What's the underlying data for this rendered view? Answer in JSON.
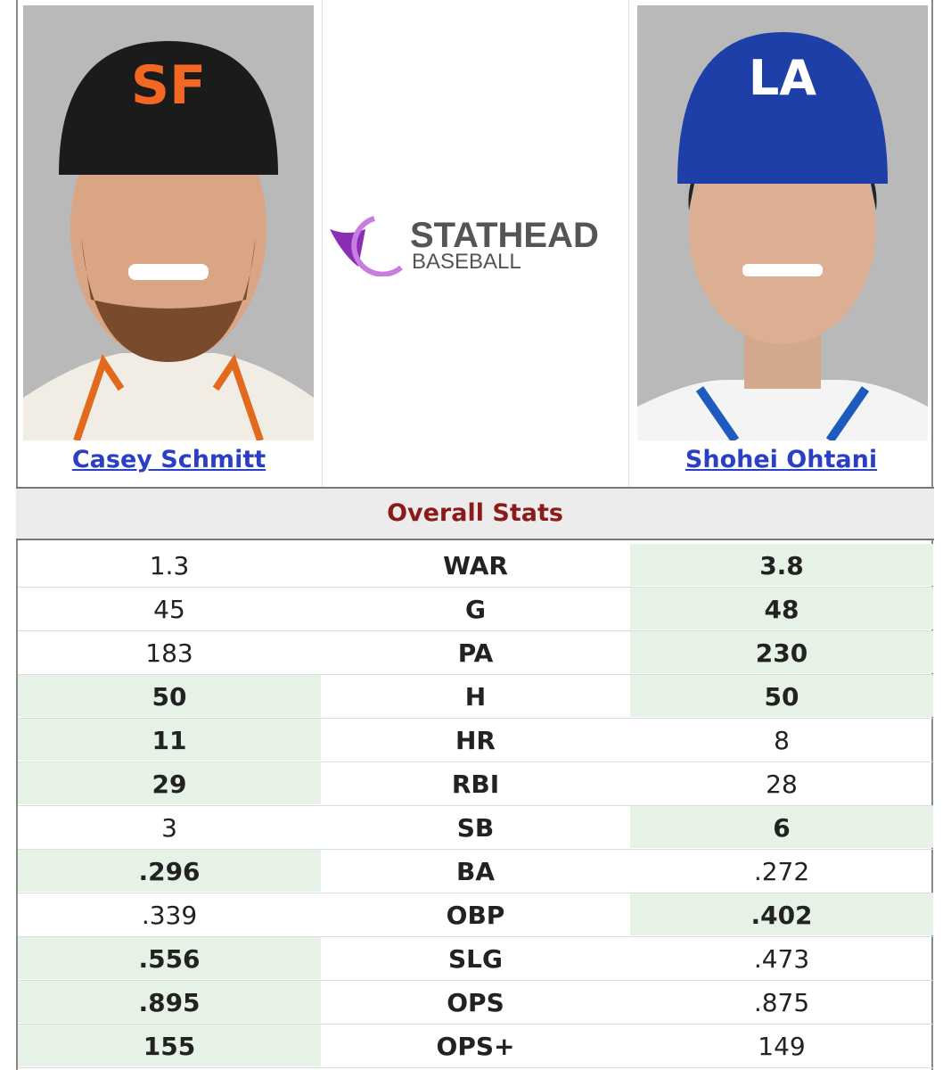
{
  "players": [
    {
      "name": "Casey Schmitt"
    },
    {
      "name": "Shohei Ohtani"
    }
  ],
  "logo": {
    "line1": "STATHEAD",
    "line2": "BASEBALL"
  },
  "section_title": "Overall Stats",
  "rows": [
    {
      "left": "1.3",
      "stat": "WAR",
      "right": "3.8",
      "leader": "right"
    },
    {
      "left": "45",
      "stat": "G",
      "right": "48",
      "leader": "right"
    },
    {
      "left": "183",
      "stat": "PA",
      "right": "230",
      "leader": "right"
    },
    {
      "left": "50",
      "stat": "H",
      "right": "50",
      "leader": "both"
    },
    {
      "left": "11",
      "stat": "HR",
      "right": "8",
      "leader": "left"
    },
    {
      "left": "29",
      "stat": "RBI",
      "right": "28",
      "leader": "left"
    },
    {
      "left": "3",
      "stat": "SB",
      "right": "6",
      "leader": "right"
    },
    {
      "left": ".296",
      "stat": "BA",
      "right": ".272",
      "leader": "left"
    },
    {
      "left": ".339",
      "stat": "OBP",
      "right": ".402",
      "leader": "right"
    },
    {
      "left": ".556",
      "stat": "SLG",
      "right": ".473",
      "leader": "left"
    },
    {
      "left": ".895",
      "stat": "OPS",
      "right": ".875",
      "leader": "left"
    },
    {
      "left": "155",
      "stat": "OPS+",
      "right": "149",
      "leader": "left"
    }
  ]
}
